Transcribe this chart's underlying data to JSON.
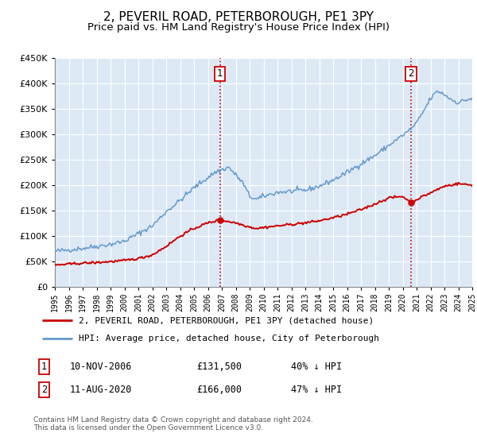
{
  "title": "2, PEVERIL ROAD, PETERBOROUGH, PE1 3PY",
  "subtitle": "Price paid vs. HM Land Registry's House Price Index (HPI)",
  "legend_line1": "2, PEVERIL ROAD, PETERBOROUGH, PE1 3PY (detached house)",
  "legend_line2": "HPI: Average price, detached house, City of Peterborough",
  "footnote": "Contains HM Land Registry data © Crown copyright and database right 2024.\nThis data is licensed under the Open Government Licence v3.0.",
  "marker1_date": "10-NOV-2006",
  "marker1_price": 131500,
  "marker1_label": "40% ↓ HPI",
  "marker1_year": 2006.86,
  "marker2_date": "11-AUG-2020",
  "marker2_price": 166000,
  "marker2_label": "47% ↓ HPI",
  "marker2_year": 2020.61,
  "red_color": "#cc0000",
  "blue_color": "#6699cc",
  "plot_bg_color": "#dce9f5",
  "ylim_min": 0,
  "ylim_max": 450000,
  "xlim_min": 1995,
  "xlim_max": 2025,
  "background_color": "#ffffff",
  "grid_color": "#ffffff",
  "title_fontsize": 11,
  "subtitle_fontsize": 9.5,
  "axis_fontsize": 8
}
